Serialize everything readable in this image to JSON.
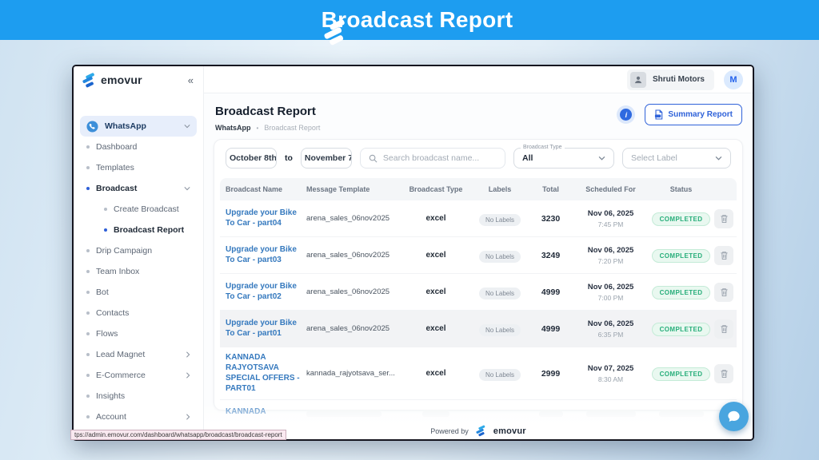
{
  "banner": {
    "title": "Broadcast Report"
  },
  "topbar": {
    "account_name": "Shruti Motors",
    "avatar_initial": "M"
  },
  "sidebar": {
    "brand": "emovur",
    "collapse_glyph": "«",
    "items": [
      {
        "label": "WhatsApp",
        "icon": "whatsapp",
        "active": true,
        "chevron": "down"
      },
      {
        "label": "Dashboard"
      },
      {
        "label": "Templates"
      },
      {
        "label": "Broadcast",
        "dot": "blue",
        "bold": true,
        "chevron": "down"
      },
      {
        "label": "Create Broadcast",
        "sub": true
      },
      {
        "label": "Broadcast Report",
        "sub": true,
        "dot": "blue",
        "bold": true
      },
      {
        "label": "Drip Campaign"
      },
      {
        "label": "Team Inbox"
      },
      {
        "label": "Bot"
      },
      {
        "label": "Contacts"
      },
      {
        "label": "Flows"
      },
      {
        "label": "Lead Magnet",
        "chevron": "right"
      },
      {
        "label": "E-Commerce",
        "chevron": "right"
      },
      {
        "label": "Insights"
      },
      {
        "label": "Account",
        "chevron": "right"
      }
    ]
  },
  "page": {
    "title": "Broadcast Report",
    "breadcrumb_root": "WhatsApp",
    "breadcrumb_separator": "•",
    "breadcrumb_current": "Broadcast Report",
    "info_glyph": "i",
    "summary_button": "Summary Report"
  },
  "filters": {
    "date_from": "October 8th",
    "to_label": "to",
    "date_to": "November 7",
    "search_placeholder": "Search broadcast name...",
    "type_label": "Broadcast Type",
    "type_value": "All",
    "label_placeholder": "Select Label"
  },
  "table": {
    "columns": [
      "Broadcast Name",
      "Message Template",
      "Broadcast Type",
      "Labels",
      "Total",
      "Scheduled For",
      "Status"
    ],
    "rows": [
      {
        "name": "Upgrade your Bike To Car - part04",
        "template": "arena_sales_06nov2025",
        "type": "excel",
        "labels": "No Labels",
        "total": "3230",
        "date": "Nov 06, 2025",
        "time": "7:45 PM",
        "status": "COMPLETED",
        "hover": false
      },
      {
        "name": "Upgrade your Bike To Car - part03",
        "template": "arena_sales_06nov2025",
        "type": "excel",
        "labels": "No Labels",
        "total": "3249",
        "date": "Nov 06, 2025",
        "time": "7:20 PM",
        "status": "COMPLETED",
        "hover": false
      },
      {
        "name": "Upgrade your Bike To Car - part02",
        "template": "arena_sales_06nov2025",
        "type": "excel",
        "labels": "No Labels",
        "total": "4999",
        "date": "Nov 06, 2025",
        "time": "7:00 PM",
        "status": "COMPLETED",
        "hover": false
      },
      {
        "name": "Upgrade your Bike To Car - part01",
        "template": "arena_sales_06nov2025",
        "type": "excel",
        "labels": "No Labels",
        "total": "4999",
        "date": "Nov 06, 2025",
        "time": "6:35 PM",
        "status": "COMPLETED",
        "hover": true
      },
      {
        "name": "KANNADA RAJYOTSAVA SPECIAL OFFERS - PART01",
        "template": "kannada_rajyotsava_ser...",
        "type": "excel",
        "labels": "No Labels",
        "total": "2999",
        "date": "Nov 07, 2025",
        "time": "8:30 AM",
        "status": "COMPLETED",
        "hover": false
      }
    ],
    "partial_row_name": "KANNADA"
  },
  "footer": {
    "powered_by": "Powered by",
    "brand": "emovur"
  },
  "statusbar": {
    "url": "tps://admin.emovur.com/dashboard/whatsapp/broadcast/broadcast-report"
  },
  "colors": {
    "banner_blue": "#1D9DF0",
    "accent_blue": "#2F62D9",
    "link_blue": "#3579BE",
    "success_green": "#27AE7A",
    "fab_blue": "#49A5DF"
  }
}
